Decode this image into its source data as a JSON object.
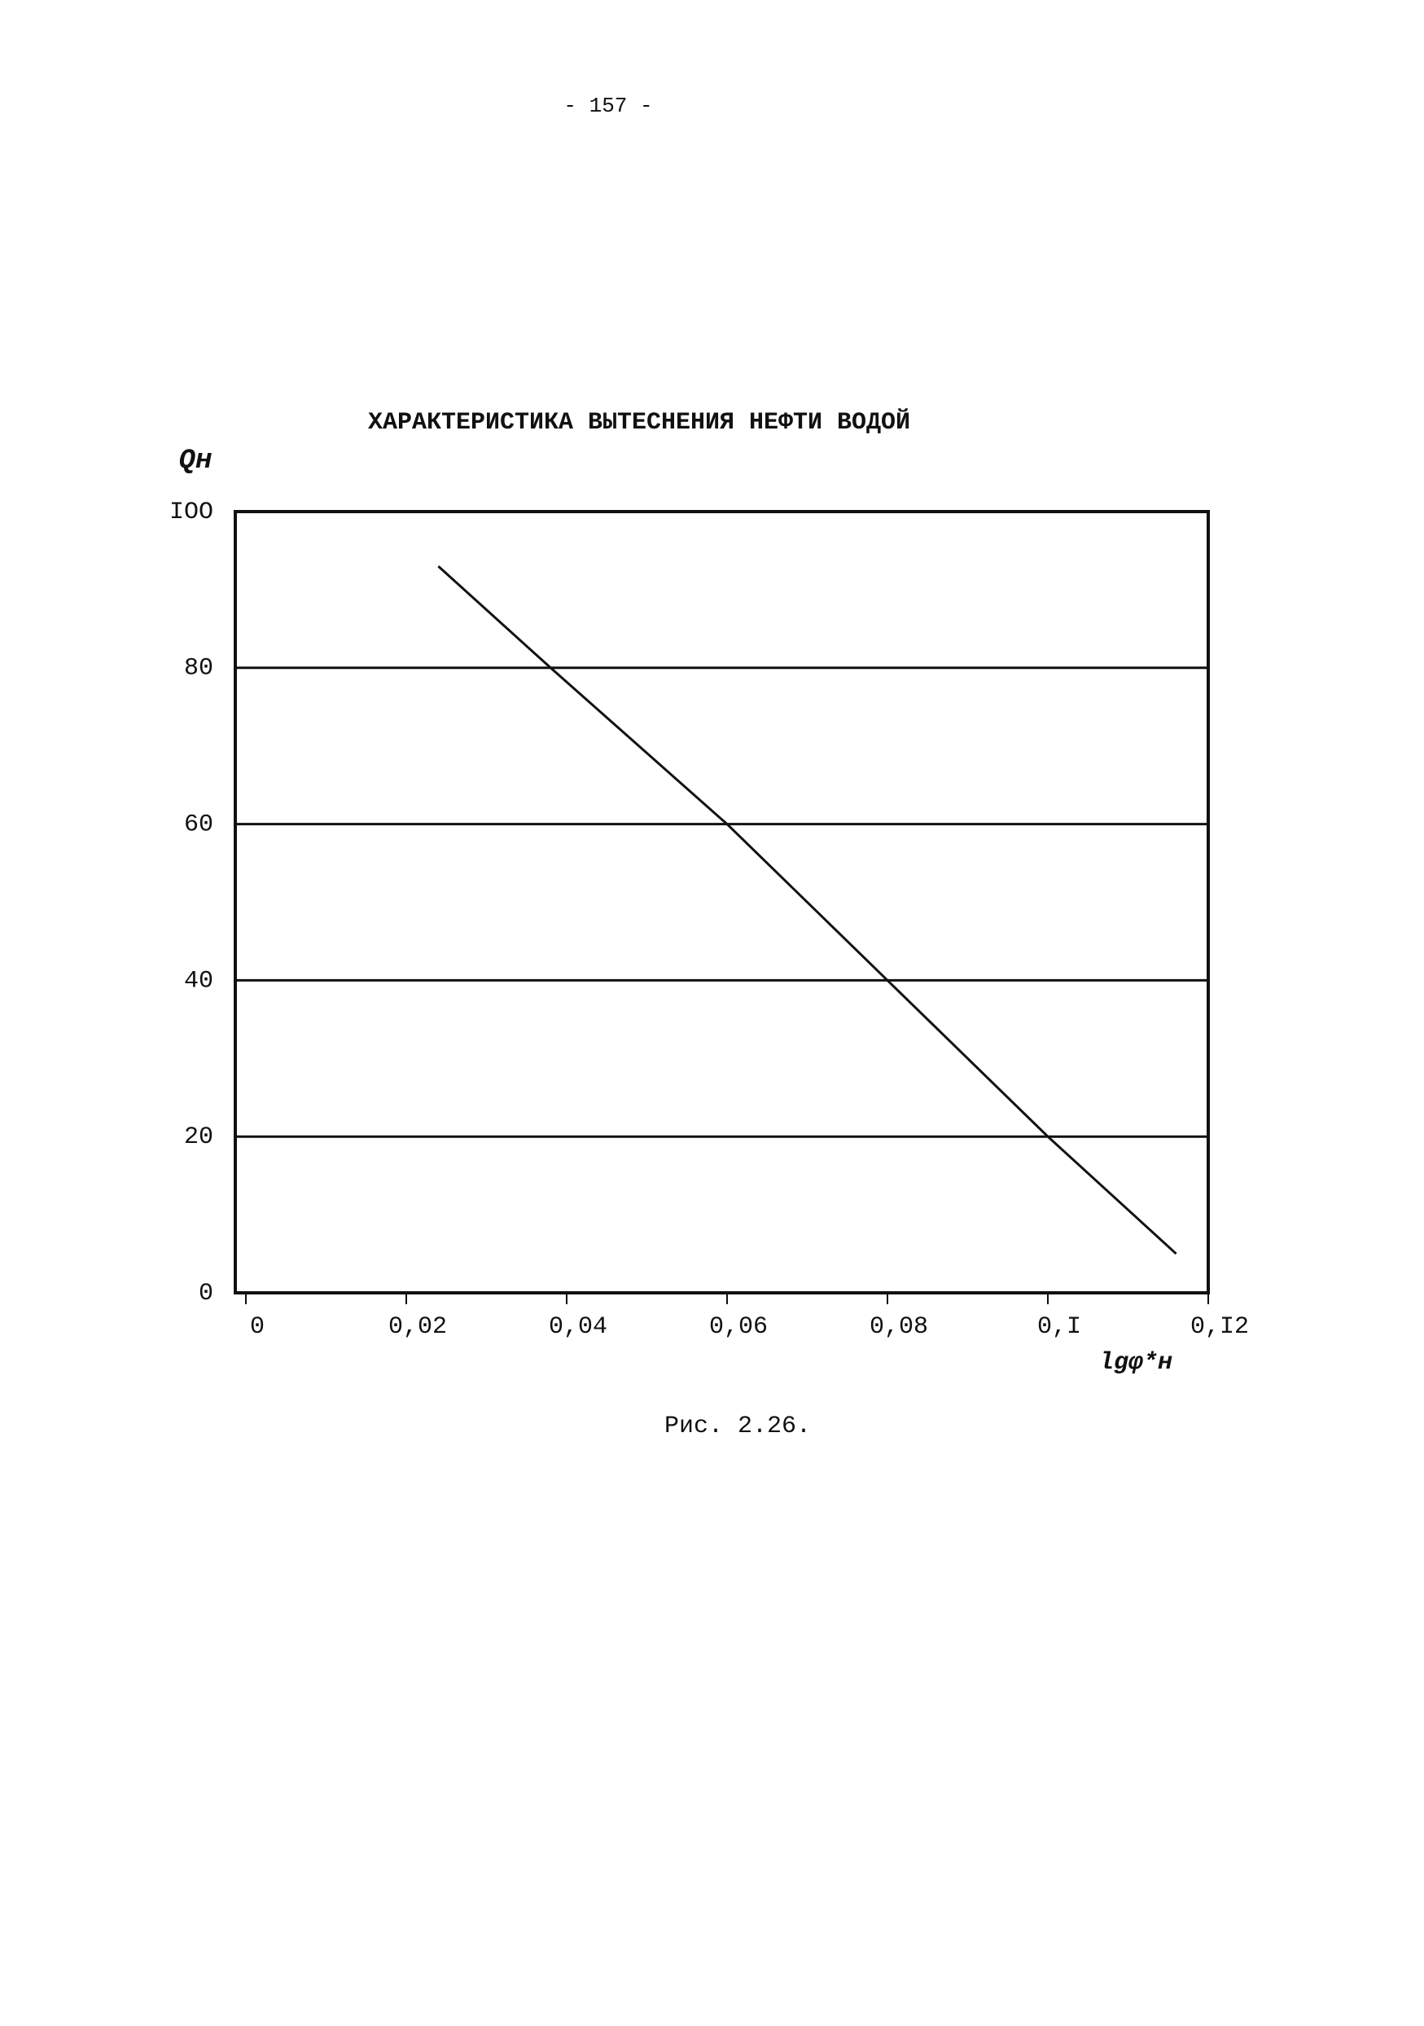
{
  "page_number": "- 157 -",
  "chart_data": {
    "type": "line",
    "title": "ХАРАКТЕРИСТИКА ВЫТЕСНЕНИЯ НЕФТИ ВОДОЙ",
    "y_label": "Qн",
    "x_label": "lgφ*н",
    "x": [
      0.024,
      0.038,
      0.06,
      0.08,
      0.1,
      0.116
    ],
    "series": [
      {
        "values": [
          93,
          80,
          60,
          40,
          20,
          5
        ],
        "color": "#111111"
      }
    ],
    "xlim": [
      0,
      0.12
    ],
    "ylim": [
      0,
      100
    ],
    "xticks": [
      0,
      {
        "value": 0.02,
        "label": "0,02"
      },
      {
        "value": 0.04,
        "label": "0,04"
      },
      {
        "value": 0.06,
        "label": "0,06"
      },
      {
        "value": 0.08,
        "label": "0,08"
      },
      {
        "value": 0.1,
        "label": "0,I"
      },
      {
        "value": 0.12,
        "label": "0,I2"
      }
    ],
    "yticks": [
      0,
      20,
      40,
      60,
      80,
      {
        "value": 100,
        "label": "IOO"
      }
    ],
    "grid": true
  },
  "caption": "Рис. 2.26."
}
